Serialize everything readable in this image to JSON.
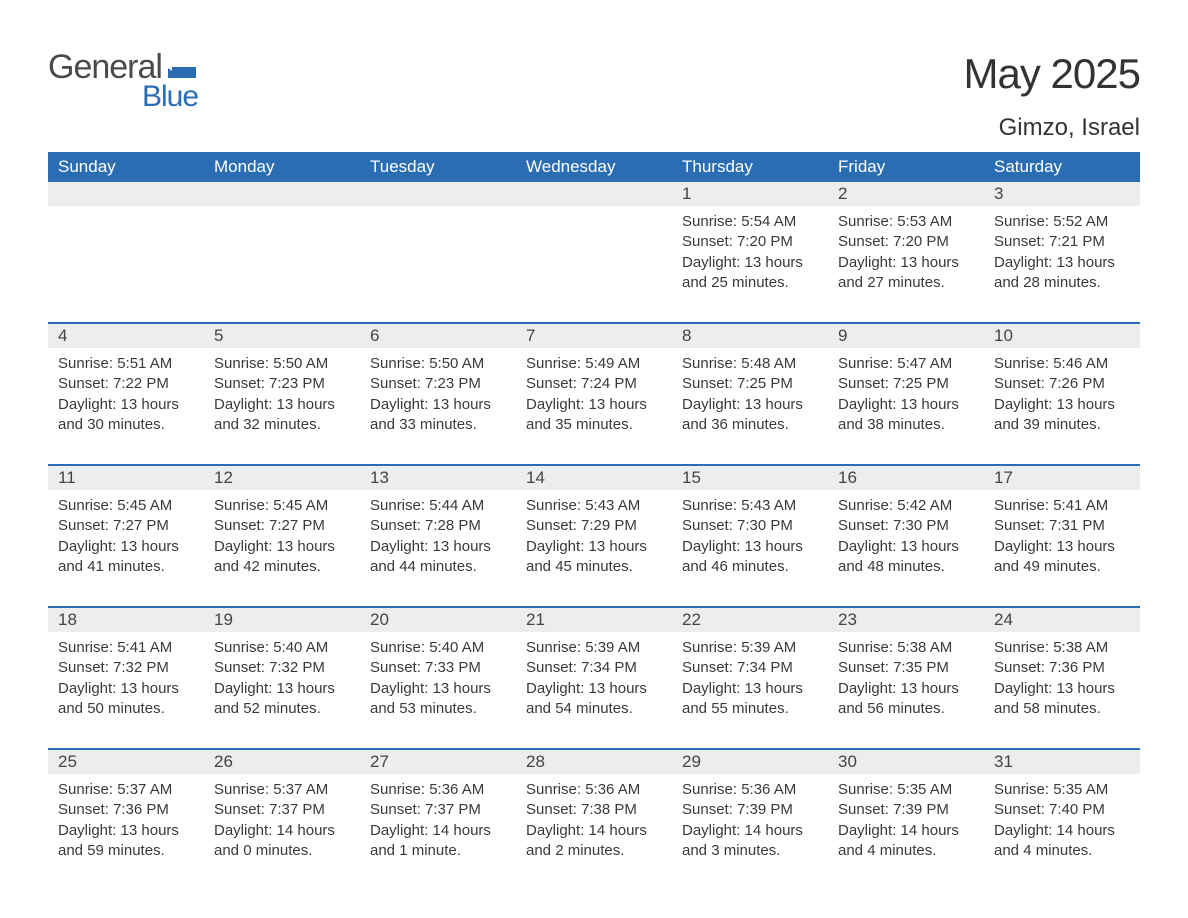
{
  "brand": {
    "name": "General",
    "sub": "Blue"
  },
  "colors": {
    "accent": "#2a6db3",
    "header_bg": "#2a6db3",
    "datebar_bg": "#ecedee",
    "text": "#3a3a3a"
  },
  "title": "May 2025",
  "location": "Gimzo, Israel",
  "day_names": [
    "Sunday",
    "Monday",
    "Tuesday",
    "Wednesday",
    "Thursday",
    "Friday",
    "Saturday"
  ],
  "weeks": [
    {
      "nums": [
        "",
        "",
        "",
        "",
        "1",
        "2",
        "3"
      ],
      "cells": [
        null,
        null,
        null,
        null,
        {
          "sunrise": "Sunrise: 5:54 AM",
          "sunset": "Sunset: 7:20 PM",
          "daylight": "Daylight: 13 hours and 25 minutes."
        },
        {
          "sunrise": "Sunrise: 5:53 AM",
          "sunset": "Sunset: 7:20 PM",
          "daylight": "Daylight: 13 hours and 27 minutes."
        },
        {
          "sunrise": "Sunrise: 5:52 AM",
          "sunset": "Sunset: 7:21 PM",
          "daylight": "Daylight: 13 hours and 28 minutes."
        }
      ]
    },
    {
      "nums": [
        "4",
        "5",
        "6",
        "7",
        "8",
        "9",
        "10"
      ],
      "cells": [
        {
          "sunrise": "Sunrise: 5:51 AM",
          "sunset": "Sunset: 7:22 PM",
          "daylight": "Daylight: 13 hours and 30 minutes."
        },
        {
          "sunrise": "Sunrise: 5:50 AM",
          "sunset": "Sunset: 7:23 PM",
          "daylight": "Daylight: 13 hours and 32 minutes."
        },
        {
          "sunrise": "Sunrise: 5:50 AM",
          "sunset": "Sunset: 7:23 PM",
          "daylight": "Daylight: 13 hours and 33 minutes."
        },
        {
          "sunrise": "Sunrise: 5:49 AM",
          "sunset": "Sunset: 7:24 PM",
          "daylight": "Daylight: 13 hours and 35 minutes."
        },
        {
          "sunrise": "Sunrise: 5:48 AM",
          "sunset": "Sunset: 7:25 PM",
          "daylight": "Daylight: 13 hours and 36 minutes."
        },
        {
          "sunrise": "Sunrise: 5:47 AM",
          "sunset": "Sunset: 7:25 PM",
          "daylight": "Daylight: 13 hours and 38 minutes."
        },
        {
          "sunrise": "Sunrise: 5:46 AM",
          "sunset": "Sunset: 7:26 PM",
          "daylight": "Daylight: 13 hours and 39 minutes."
        }
      ]
    },
    {
      "nums": [
        "11",
        "12",
        "13",
        "14",
        "15",
        "16",
        "17"
      ],
      "cells": [
        {
          "sunrise": "Sunrise: 5:45 AM",
          "sunset": "Sunset: 7:27 PM",
          "daylight": "Daylight: 13 hours and 41 minutes."
        },
        {
          "sunrise": "Sunrise: 5:45 AM",
          "sunset": "Sunset: 7:27 PM",
          "daylight": "Daylight: 13 hours and 42 minutes."
        },
        {
          "sunrise": "Sunrise: 5:44 AM",
          "sunset": "Sunset: 7:28 PM",
          "daylight": "Daylight: 13 hours and 44 minutes."
        },
        {
          "sunrise": "Sunrise: 5:43 AM",
          "sunset": "Sunset: 7:29 PM",
          "daylight": "Daylight: 13 hours and 45 minutes."
        },
        {
          "sunrise": "Sunrise: 5:43 AM",
          "sunset": "Sunset: 7:30 PM",
          "daylight": "Daylight: 13 hours and 46 minutes."
        },
        {
          "sunrise": "Sunrise: 5:42 AM",
          "sunset": "Sunset: 7:30 PM",
          "daylight": "Daylight: 13 hours and 48 minutes."
        },
        {
          "sunrise": "Sunrise: 5:41 AM",
          "sunset": "Sunset: 7:31 PM",
          "daylight": "Daylight: 13 hours and 49 minutes."
        }
      ]
    },
    {
      "nums": [
        "18",
        "19",
        "20",
        "21",
        "22",
        "23",
        "24"
      ],
      "cells": [
        {
          "sunrise": "Sunrise: 5:41 AM",
          "sunset": "Sunset: 7:32 PM",
          "daylight": "Daylight: 13 hours and 50 minutes."
        },
        {
          "sunrise": "Sunrise: 5:40 AM",
          "sunset": "Sunset: 7:32 PM",
          "daylight": "Daylight: 13 hours and 52 minutes."
        },
        {
          "sunrise": "Sunrise: 5:40 AM",
          "sunset": "Sunset: 7:33 PM",
          "daylight": "Daylight: 13 hours and 53 minutes."
        },
        {
          "sunrise": "Sunrise: 5:39 AM",
          "sunset": "Sunset: 7:34 PM",
          "daylight": "Daylight: 13 hours and 54 minutes."
        },
        {
          "sunrise": "Sunrise: 5:39 AM",
          "sunset": "Sunset: 7:34 PM",
          "daylight": "Daylight: 13 hours and 55 minutes."
        },
        {
          "sunrise": "Sunrise: 5:38 AM",
          "sunset": "Sunset: 7:35 PM",
          "daylight": "Daylight: 13 hours and 56 minutes."
        },
        {
          "sunrise": "Sunrise: 5:38 AM",
          "sunset": "Sunset: 7:36 PM",
          "daylight": "Daylight: 13 hours and 58 minutes."
        }
      ]
    },
    {
      "nums": [
        "25",
        "26",
        "27",
        "28",
        "29",
        "30",
        "31"
      ],
      "cells": [
        {
          "sunrise": "Sunrise: 5:37 AM",
          "sunset": "Sunset: 7:36 PM",
          "daylight": "Daylight: 13 hours and 59 minutes."
        },
        {
          "sunrise": "Sunrise: 5:37 AM",
          "sunset": "Sunset: 7:37 PM",
          "daylight": "Daylight: 14 hours and 0 minutes."
        },
        {
          "sunrise": "Sunrise: 5:36 AM",
          "sunset": "Sunset: 7:37 PM",
          "daylight": "Daylight: 14 hours and 1 minute."
        },
        {
          "sunrise": "Sunrise: 5:36 AM",
          "sunset": "Sunset: 7:38 PM",
          "daylight": "Daylight: 14 hours and 2 minutes."
        },
        {
          "sunrise": "Sunrise: 5:36 AM",
          "sunset": "Sunset: 7:39 PM",
          "daylight": "Daylight: 14 hours and 3 minutes."
        },
        {
          "sunrise": "Sunrise: 5:35 AM",
          "sunset": "Sunset: 7:39 PM",
          "daylight": "Daylight: 14 hours and 4 minutes."
        },
        {
          "sunrise": "Sunrise: 5:35 AM",
          "sunset": "Sunset: 7:40 PM",
          "daylight": "Daylight: 14 hours and 4 minutes."
        }
      ]
    }
  ]
}
